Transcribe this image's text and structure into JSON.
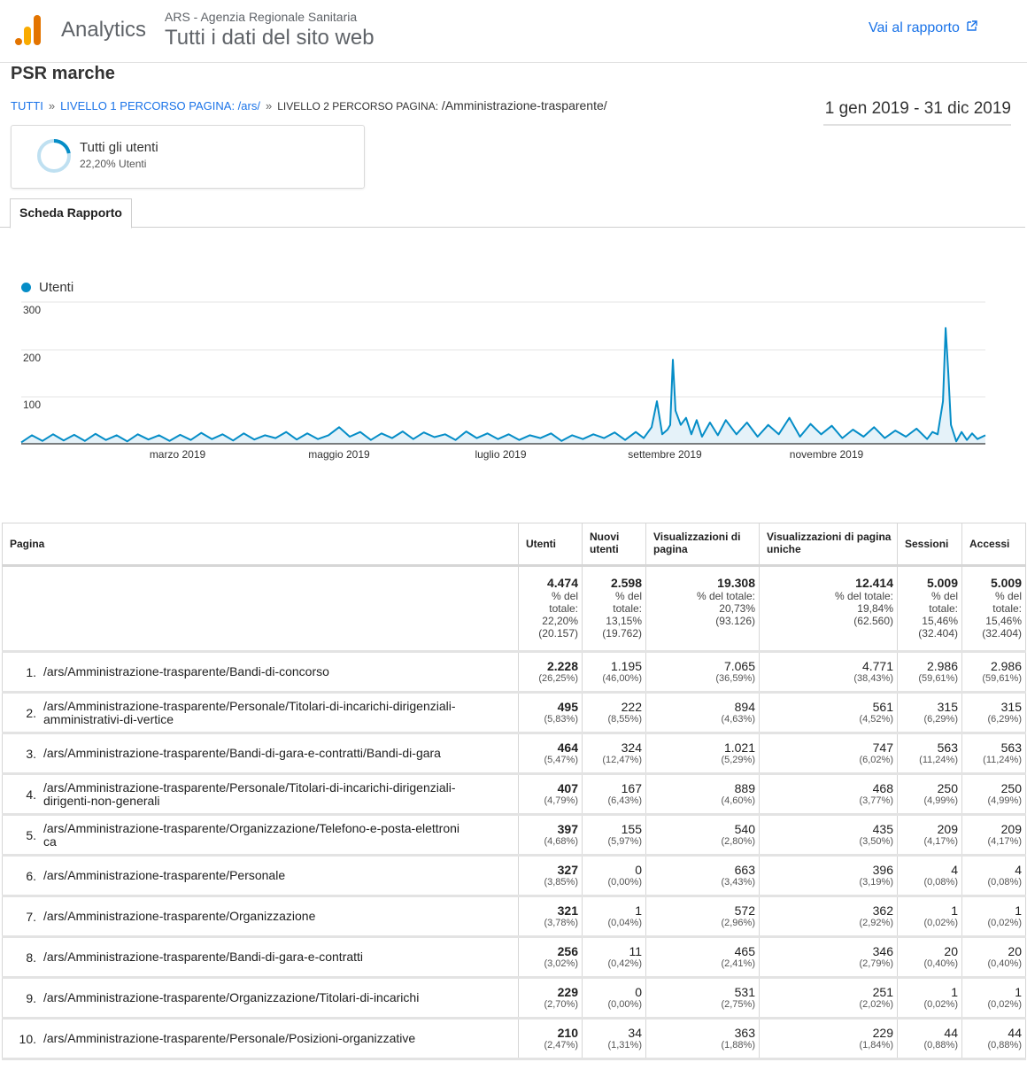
{
  "header": {
    "brand": "Analytics",
    "account": "ARS - Agenzia Regionale Sanitaria",
    "view": "Tutti i dati del sito web",
    "report_link": "Vai al rapporto"
  },
  "report": {
    "title": "PSR marche",
    "breadcrumb": {
      "root": "TUTTI",
      "sep": "»",
      "level1": "LIVELLO 1 PERCORSO PAGINA: /ars/",
      "level2_label": "LIVELLO 2 PERCORSO PAGINA:",
      "level2_value": " /Amministrazione-trasparente/"
    },
    "date_range": "1 gen 2019 - 31 dic 2019",
    "segment": {
      "name": "Tutti gli utenti",
      "pct": "22,20% Utenti",
      "fraction": 0.222
    },
    "tab": "Scheda Rapporto"
  },
  "colors": {
    "brand_orange": "#f9ab00",
    "brand_dark_orange": "#e37400",
    "link": "#1a73e8",
    "series": "#058dc7"
  },
  "chart_data": {
    "type": "area",
    "legend": "Utenti",
    "y_ticks": [
      "300",
      "200",
      "100"
    ],
    "ylim": [
      0,
      300
    ],
    "x_ticks": [
      "marzo 2019",
      "maggio 2019",
      "luglio 2019",
      "settembre 2019",
      "novembre 2019"
    ],
    "x_tick_days": [
      59,
      120,
      181,
      243,
      304
    ],
    "x_range": [
      0,
      364
    ],
    "series": [
      {
        "name": "Utenti",
        "keypoints": [
          [
            0,
            3
          ],
          [
            4,
            18
          ],
          [
            8,
            6
          ],
          [
            12,
            20
          ],
          [
            16,
            7
          ],
          [
            20,
            19
          ],
          [
            24,
            6
          ],
          [
            28,
            21
          ],
          [
            32,
            8
          ],
          [
            36,
            18
          ],
          [
            40,
            5
          ],
          [
            44,
            20
          ],
          [
            48,
            9
          ],
          [
            52,
            18
          ],
          [
            56,
            6
          ],
          [
            60,
            19
          ],
          [
            64,
            8
          ],
          [
            68,
            23
          ],
          [
            72,
            10
          ],
          [
            76,
            20
          ],
          [
            80,
            7
          ],
          [
            84,
            22
          ],
          [
            88,
            9
          ],
          [
            92,
            18
          ],
          [
            96,
            12
          ],
          [
            100,
            25
          ],
          [
            104,
            9
          ],
          [
            108,
            22
          ],
          [
            112,
            10
          ],
          [
            116,
            18
          ],
          [
            120,
            35
          ],
          [
            124,
            15
          ],
          [
            128,
            25
          ],
          [
            132,
            8
          ],
          [
            136,
            22
          ],
          [
            140,
            12
          ],
          [
            144,
            26
          ],
          [
            148,
            10
          ],
          [
            152,
            24
          ],
          [
            156,
            14
          ],
          [
            160,
            20
          ],
          [
            164,
            8
          ],
          [
            168,
            26
          ],
          [
            172,
            12
          ],
          [
            176,
            22
          ],
          [
            180,
            10
          ],
          [
            184,
            20
          ],
          [
            188,
            8
          ],
          [
            192,
            18
          ],
          [
            196,
            12
          ],
          [
            200,
            22
          ],
          [
            204,
            6
          ],
          [
            208,
            18
          ],
          [
            212,
            10
          ],
          [
            216,
            20
          ],
          [
            220,
            12
          ],
          [
            224,
            24
          ],
          [
            228,
            8
          ],
          [
            232,
            25
          ],
          [
            235,
            12
          ],
          [
            238,
            35
          ],
          [
            240,
            90
          ],
          [
            242,
            20
          ],
          [
            244,
            30
          ],
          [
            245,
            40
          ],
          [
            246,
            178
          ],
          [
            247,
            70
          ],
          [
            249,
            40
          ],
          [
            251,
            55
          ],
          [
            253,
            20
          ],
          [
            255,
            50
          ],
          [
            257,
            15
          ],
          [
            260,
            45
          ],
          [
            263,
            18
          ],
          [
            266,
            50
          ],
          [
            270,
            20
          ],
          [
            274,
            45
          ],
          [
            278,
            15
          ],
          [
            282,
            40
          ],
          [
            286,
            20
          ],
          [
            290,
            55
          ],
          [
            294,
            15
          ],
          [
            298,
            42
          ],
          [
            302,
            20
          ],
          [
            306,
            38
          ],
          [
            310,
            12
          ],
          [
            314,
            30
          ],
          [
            318,
            15
          ],
          [
            322,
            35
          ],
          [
            326,
            12
          ],
          [
            330,
            28
          ],
          [
            334,
            15
          ],
          [
            338,
            32
          ],
          [
            342,
            10
          ],
          [
            344,
            25
          ],
          [
            346,
            20
          ],
          [
            348,
            90
          ],
          [
            349,
            245
          ],
          [
            350,
            150
          ],
          [
            351,
            40
          ],
          [
            353,
            5
          ],
          [
            355,
            25
          ],
          [
            357,
            8
          ],
          [
            359,
            22
          ],
          [
            361,
            10
          ],
          [
            364,
            18
          ]
        ]
      }
    ]
  },
  "table": {
    "headers": [
      "Pagina",
      "Utenti",
      "Nuovi utenti",
      "Visualizzazioni di pagina",
      "Visualizzazioni di pagina uniche",
      "Sessioni",
      "Accessi"
    ],
    "totals": [
      {
        "value": "4.474",
        "l1": "% del",
        "l2": "totale:",
        "l3": "22,20%",
        "l4": "(20.157)"
      },
      {
        "value": "2.598",
        "l1": "% del",
        "l2": "totale:",
        "l3": "13,15%",
        "l4": "(19.762)"
      },
      {
        "value": "19.308",
        "l1": "% del totale:",
        "l2": "",
        "l3": "20,73%",
        "l4": "(93.126)"
      },
      {
        "value": "12.414",
        "l1": "% del totale:",
        "l2": "",
        "l3": "19,84%",
        "l4": "(62.560)"
      },
      {
        "value": "5.009",
        "l1": "% del",
        "l2": "totale:",
        "l3": "15,46%",
        "l4": "(32.404)"
      },
      {
        "value": "5.009",
        "l1": "% del",
        "l2": "totale:",
        "l3": "15,46%",
        "l4": "(32.404)"
      }
    ],
    "rows": [
      {
        "idx": "1.",
        "page": "/ars/Amministrazione-trasparente/Bandi-di-concorso",
        "page2": "",
        "vals": [
          [
            "2.228",
            "(26,25%)"
          ],
          [
            "1.195",
            "(46,00%)"
          ],
          [
            "7.065",
            "(36,59%)"
          ],
          [
            "4.771",
            "(38,43%)"
          ],
          [
            "2.986",
            "(59,61%)"
          ],
          [
            "2.986",
            "(59,61%)"
          ]
        ]
      },
      {
        "idx": "2.",
        "page": "/ars/Amministrazione-trasparente/Personale/Titolari-di-incarichi-dirigenziali-",
        "page2": "amministrativi-di-vertice",
        "vals": [
          [
            "495",
            "(5,83%)"
          ],
          [
            "222",
            "(8,55%)"
          ],
          [
            "894",
            "(4,63%)"
          ],
          [
            "561",
            "(4,52%)"
          ],
          [
            "315",
            "(6,29%)"
          ],
          [
            "315",
            "(6,29%)"
          ]
        ]
      },
      {
        "idx": "3.",
        "page": "/ars/Amministrazione-trasparente/Bandi-di-gara-e-contratti/Bandi-di-gara",
        "page2": "",
        "vals": [
          [
            "464",
            "(5,47%)"
          ],
          [
            "324",
            "(12,47%)"
          ],
          [
            "1.021",
            "(5,29%)"
          ],
          [
            "747",
            "(6,02%)"
          ],
          [
            "563",
            "(11,24%)"
          ],
          [
            "563",
            "(11,24%)"
          ]
        ]
      },
      {
        "idx": "4.",
        "page": "/ars/Amministrazione-trasparente/Personale/Titolari-di-incarichi-dirigenziali-",
        "page2": "dirigenti-non-generali",
        "vals": [
          [
            "407",
            "(4,79%)"
          ],
          [
            "167",
            "(6,43%)"
          ],
          [
            "889",
            "(4,60%)"
          ],
          [
            "468",
            "(3,77%)"
          ],
          [
            "250",
            "(4,99%)"
          ],
          [
            "250",
            "(4,99%)"
          ]
        ]
      },
      {
        "idx": "5.",
        "page": "/ars/Amministrazione-trasparente/Organizzazione/Telefono-e-posta-elettroni",
        "page2": "ca",
        "vals": [
          [
            "397",
            "(4,68%)"
          ],
          [
            "155",
            "(5,97%)"
          ],
          [
            "540",
            "(2,80%)"
          ],
          [
            "435",
            "(3,50%)"
          ],
          [
            "209",
            "(4,17%)"
          ],
          [
            "209",
            "(4,17%)"
          ]
        ]
      },
      {
        "idx": "6.",
        "page": "/ars/Amministrazione-trasparente/Personale",
        "page2": "",
        "vals": [
          [
            "327",
            "(3,85%)"
          ],
          [
            "0",
            "(0,00%)"
          ],
          [
            "663",
            "(3,43%)"
          ],
          [
            "396",
            "(3,19%)"
          ],
          [
            "4",
            "(0,08%)"
          ],
          [
            "4",
            "(0,08%)"
          ]
        ]
      },
      {
        "idx": "7.",
        "page": "/ars/Amministrazione-trasparente/Organizzazione",
        "page2": "",
        "vals": [
          [
            "321",
            "(3,78%)"
          ],
          [
            "1",
            "(0,04%)"
          ],
          [
            "572",
            "(2,96%)"
          ],
          [
            "362",
            "(2,92%)"
          ],
          [
            "1",
            "(0,02%)"
          ],
          [
            "1",
            "(0,02%)"
          ]
        ]
      },
      {
        "idx": "8.",
        "page": "/ars/Amministrazione-trasparente/Bandi-di-gara-e-contratti",
        "page2": "",
        "vals": [
          [
            "256",
            "(3,02%)"
          ],
          [
            "11",
            "(0,42%)"
          ],
          [
            "465",
            "(2,41%)"
          ],
          [
            "346",
            "(2,79%)"
          ],
          [
            "20",
            "(0,40%)"
          ],
          [
            "20",
            "(0,40%)"
          ]
        ]
      },
      {
        "idx": "9.",
        "page": "/ars/Amministrazione-trasparente/Organizzazione/Titolari-di-incarichi",
        "page2": "",
        "vals": [
          [
            "229",
            "(2,70%)"
          ],
          [
            "0",
            "(0,00%)"
          ],
          [
            "531",
            "(2,75%)"
          ],
          [
            "251",
            "(2,02%)"
          ],
          [
            "1",
            "(0,02%)"
          ],
          [
            "1",
            "(0,02%)"
          ]
        ]
      },
      {
        "idx": "10.",
        "page": "/ars/Amministrazione-trasparente/Personale/Posizioni-organizzative",
        "page2": "",
        "vals": [
          [
            "210",
            "(2,47%)"
          ],
          [
            "34",
            "(1,31%)"
          ],
          [
            "363",
            "(1,88%)"
          ],
          [
            "229",
            "(1,84%)"
          ],
          [
            "44",
            "(0,88%)"
          ],
          [
            "44",
            "(0,88%)"
          ]
        ]
      }
    ]
  }
}
